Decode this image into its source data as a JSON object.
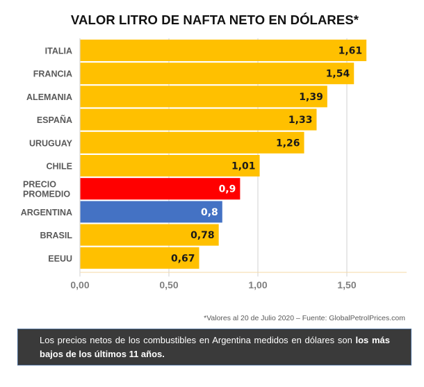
{
  "header": {
    "title": "VALOR LITRO DE NAFTA NETO EN DÓLARES*"
  },
  "chart_data": {
    "type": "bar",
    "orientation": "horizontal",
    "title": "VALOR LITRO DE NAFTA NETO EN DÓLARES*",
    "xlabel": "",
    "ylabel": "",
    "categories": [
      "ITALIA",
      "FRANCIA",
      "ALEMANIA",
      "ESPAÑA",
      "URUGUAY",
      "CHILE",
      "PRECIO PROMEDIO",
      "ARGENTINA",
      "BRASIL",
      "EEUU"
    ],
    "values": [
      1.61,
      1.54,
      1.39,
      1.33,
      1.26,
      1.01,
      0.9,
      0.8,
      0.78,
      0.67
    ],
    "value_labels": [
      "1,61",
      "1,54",
      "1,39",
      "1,33",
      "1,26",
      "1,01",
      "0,9",
      "0,8",
      "0,78",
      "0,67"
    ],
    "bar_colors": [
      "#ffc000",
      "#ffc000",
      "#ffc000",
      "#ffc000",
      "#ffc000",
      "#ffc000",
      "#ff0000",
      "#4472c4",
      "#ffc000",
      "#ffc000"
    ],
    "label_colors": [
      "#1a1a1a",
      "#1a1a1a",
      "#1a1a1a",
      "#1a1a1a",
      "#1a1a1a",
      "#1a1a1a",
      "#ffffff",
      "#ffffff",
      "#1a1a1a",
      "#1a1a1a"
    ],
    "xlim": [
      0,
      1.8
    ],
    "xticks": [
      0,
      0.5,
      1.0,
      1.5
    ],
    "xtick_labels": [
      "0,00",
      "0,50",
      "1,00",
      "1,50"
    ],
    "grid": true,
    "legend": "none"
  },
  "footnote": "*Valores al 20 de Julio 2020 – Fuente: GlobalPetrolPrices.com",
  "summary": {
    "text_normal": "Los precios netos de los combustibles en Argentina medidos en dólares son ",
    "text_bold": "los más bajos de los últimos 11 años."
  }
}
